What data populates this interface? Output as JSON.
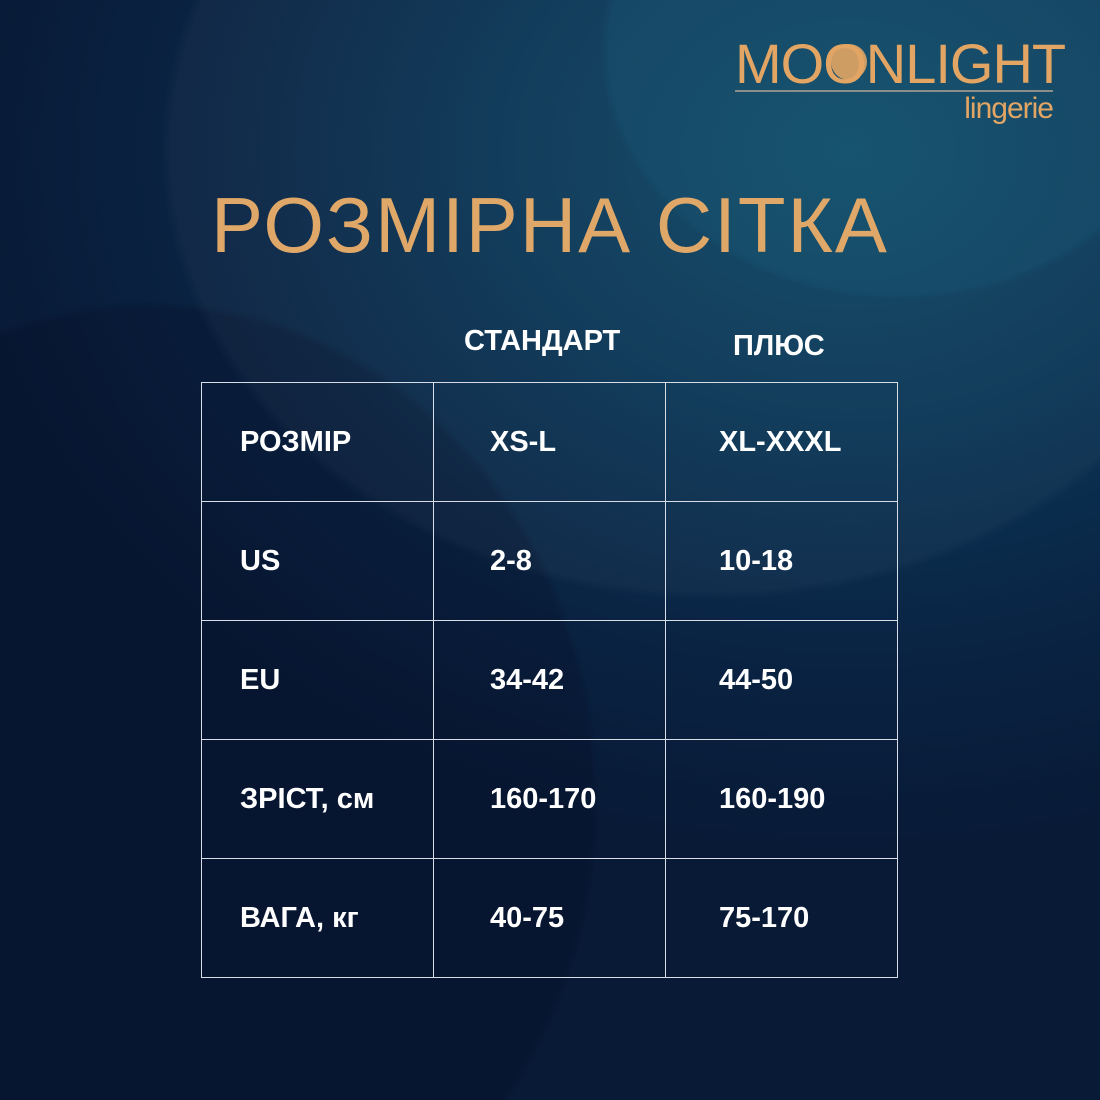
{
  "brand": {
    "name": "MOONLIGHT",
    "sub": "lingerie",
    "color": "#e2a564"
  },
  "title": "РОЗМІРНА СІТКА",
  "columns": [
    "СТАНДАРТ",
    "ПЛЮС"
  ],
  "rows": [
    {
      "label": "РОЗМІР",
      "standard": "XS-L",
      "plus": "XL-XXXL"
    },
    {
      "label": "US",
      "standard": "2-8",
      "plus": "10-18"
    },
    {
      "label": "EU",
      "standard": "34-42",
      "plus": "44-50"
    },
    {
      "label": "ЗРІСТ, см",
      "standard": "160-170",
      "plus": "160-190"
    },
    {
      "label": "ВАГА, кг",
      "standard": "40-75",
      "plus": "75-170"
    }
  ]
}
